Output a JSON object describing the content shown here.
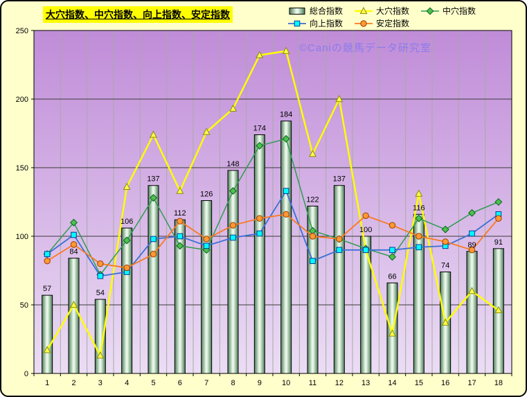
{
  "chart": {
    "title": "大穴指数、中穴指数、向上指数、安定指数",
    "watermark": "©Caniの競馬データ研究室"
  },
  "colors": {
    "outer_bg": "#FFFFCC",
    "title_bg": "#FFFF00",
    "plot_bg_top": "#C08CD8",
    "plot_bg_bottom": "#EBDDF4",
    "grid_h": "#3A3A3A",
    "grid_v": "#A8A8A8",
    "axis": "#000000",
    "watermark": "#8B7BEB",
    "bar_dark": "#4C7E57",
    "bar_light": "#E9F7E9",
    "bar_border": "#000000"
  },
  "chart_data": {
    "type": "combo",
    "title": "大穴指数、中穴指数、向上指数、安定指数",
    "xlabel": "",
    "ylabel": "",
    "ylim": [
      0,
      250
    ],
    "ytick": 50,
    "grid": true,
    "legend_position": "top",
    "categories": [
      "1",
      "2",
      "3",
      "4",
      "5",
      "6",
      "7",
      "8",
      "9",
      "10",
      "11",
      "12",
      "13",
      "14",
      "15",
      "16",
      "17",
      "18"
    ],
    "series": [
      {
        "name": "総合指数",
        "type": "bar",
        "values": [
          57,
          84,
          54,
          106,
          137,
          112,
          126,
          148,
          174,
          184,
          122,
          137,
          100,
          66,
          116,
          74,
          89,
          91
        ]
      },
      {
        "name": "大穴指数",
        "type": "line",
        "marker": "triangle",
        "line_color": "#FFFF00",
        "line_width": 2.5,
        "marker_fill": "#FFFF4D",
        "marker_stroke": "#8A8A00",
        "values": [
          17,
          50,
          13,
          136,
          174,
          133,
          176,
          193,
          232,
          235,
          160,
          200,
          90,
          29,
          131,
          37,
          60,
          46
        ]
      },
      {
        "name": "中穴指数",
        "type": "line",
        "marker": "diamond",
        "line_color": "#2E9B4E",
        "line_width": 1.5,
        "marker_fill": "#4DC24D",
        "marker_stroke": "#0B5F20",
        "values": [
          87,
          110,
          72,
          97,
          128,
          93,
          90,
          133,
          166,
          171,
          104,
          98,
          91,
          85,
          113,
          105,
          117,
          125
        ]
      },
      {
        "name": "向上指数",
        "type": "line",
        "marker": "square",
        "line_color": "#3B6FD4",
        "line_width": 1.8,
        "marker_fill": "#00FFFF",
        "marker_stroke": "#00379B",
        "values": [
          87,
          101,
          71,
          74,
          98,
          100,
          93,
          99,
          102,
          133,
          82,
          90,
          90,
          90,
          92,
          93,
          102,
          116
        ]
      },
      {
        "name": "安定指数",
        "type": "line",
        "marker": "circle",
        "line_color": "#F97A1F",
        "line_width": 1.8,
        "marker_fill": "#FF9933",
        "marker_stroke": "#9B3B00",
        "values": [
          82,
          94,
          80,
          77,
          87,
          111,
          98,
          108,
          113,
          116,
          100,
          98,
          115,
          108,
          100,
          96,
          90,
          113
        ]
      }
    ]
  }
}
